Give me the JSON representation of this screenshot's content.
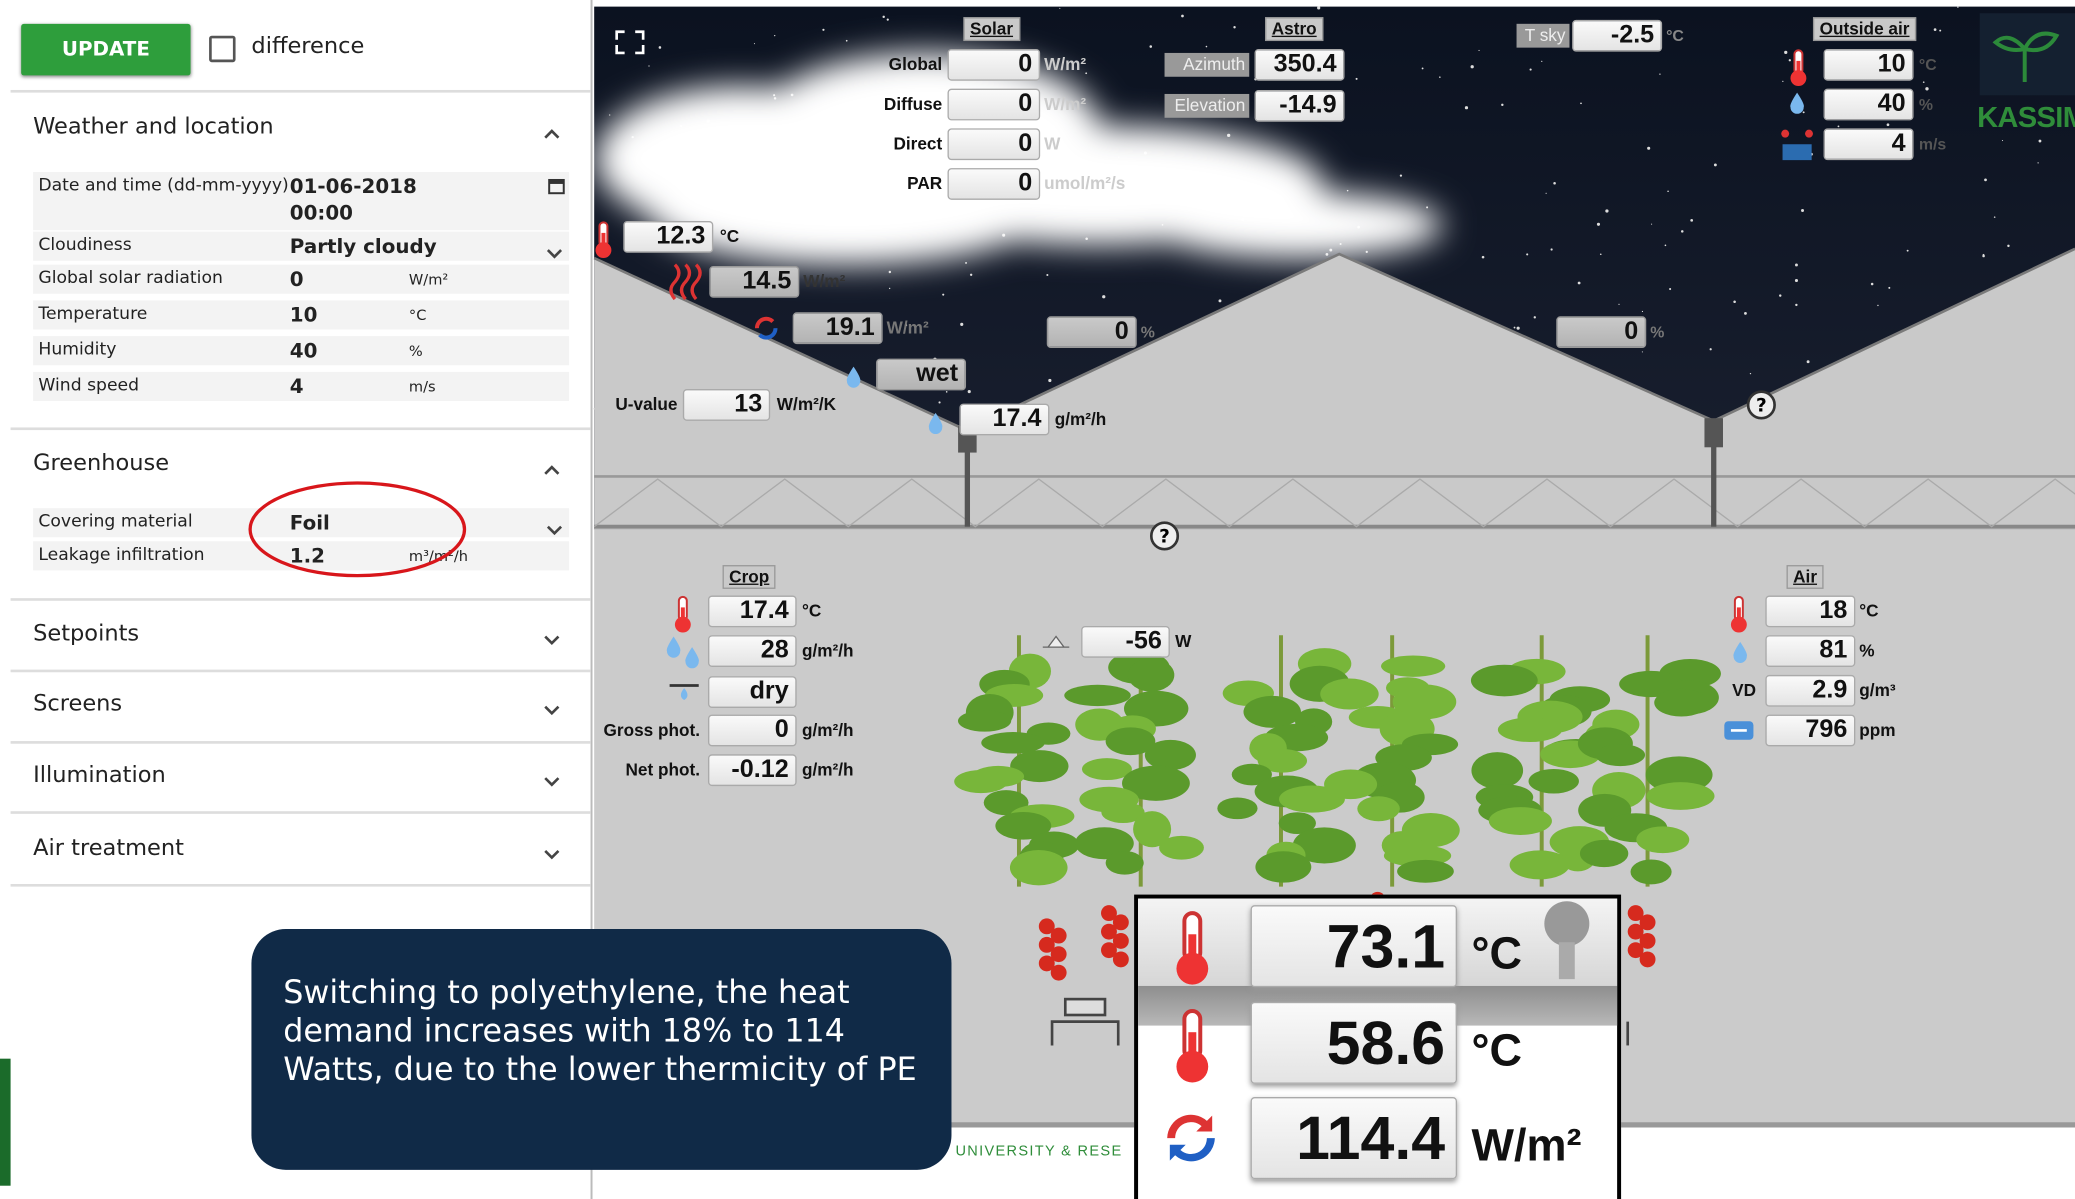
{
  "sidebar": {
    "update_button": "UPDATE",
    "difference_label": "difference",
    "sections": [
      {
        "title": "Weather and location",
        "fields": [
          {
            "label": "Date and time (dd-mm-yyyy)",
            "value": "01-06-2018",
            "time": "00:00"
          },
          {
            "label": "Cloudiness",
            "value": "Partly cloudy"
          },
          {
            "label": "Global solar radiation",
            "value": 0,
            "unit": "W/m²"
          },
          {
            "label": "Temperature",
            "value": 10,
            "unit": "°C"
          },
          {
            "label": "Humidity",
            "value": 40,
            "unit": "%"
          },
          {
            "label": "Wind speed",
            "value": 4,
            "unit": "m/s"
          }
        ]
      },
      {
        "title": "Greenhouse",
        "fields": [
          {
            "label": "Covering material",
            "value": "Foil"
          },
          {
            "label": "Leakage infiltration",
            "value": 1.2,
            "unit": "m³/m²/h"
          }
        ]
      },
      {
        "title": "Setpoints"
      },
      {
        "title": "Screens"
      },
      {
        "title": "Illumination"
      },
      {
        "title": "Air treatment"
      }
    ]
  },
  "scene": {
    "solar": {
      "title": "Solar",
      "rows": [
        {
          "label": "Global",
          "value": 0,
          "unit": "W/m²"
        },
        {
          "label": "Diffuse",
          "value": 0,
          "unit": "W/m²"
        },
        {
          "label": "Direct",
          "value": 0,
          "unit": "W"
        },
        {
          "label": "PAR",
          "value": 0,
          "unit": "umol/m²/s"
        }
      ]
    },
    "astro": {
      "title": "Astro",
      "rows": [
        {
          "label": "Azimuth",
          "value": 350.4
        },
        {
          "label": "Elevation",
          "value": -14.9
        }
      ]
    },
    "sky": {
      "label": "T sky",
      "value": -2.5,
      "unit": "°C"
    },
    "outside_air": {
      "title": "Outside air",
      "rows": [
        {
          "value": 10,
          "unit": "°C"
        },
        {
          "value": 40,
          "unit": "%"
        },
        {
          "value": 4,
          "unit": "m/s"
        }
      ]
    },
    "logo": "KASSIM",
    "roof": {
      "temperature": {
        "value": 12.3,
        "unit": "°C"
      },
      "radiation": {
        "value": 14.5,
        "unit": "W/m²"
      },
      "heat_flux": {
        "value": 19.1,
        "unit": "W/m²"
      },
      "condensation": "wet",
      "u_value": {
        "label": "U-value",
        "value": 13,
        "unit": "W/m²/K"
      },
      "condensation_rate": {
        "value": 17.4,
        "unit": "g/m²/h"
      },
      "vent_left": {
        "value": 0,
        "unit": "%"
      },
      "vent_right": {
        "value": 0,
        "unit": "%"
      }
    },
    "crop": {
      "title": "Crop",
      "temperature": {
        "value": 17.4,
        "unit": "°C"
      },
      "transpiration": {
        "value": 28,
        "unit": "g/m²/h"
      },
      "wetness": "dry",
      "gross_phot": {
        "label": "Gross phot.",
        "value": 0,
        "unit": "g/m²/h"
      },
      "net_phot": {
        "label": "Net phot.",
        "value": -0.12,
        "unit": "g/m²/h"
      }
    },
    "heating": {
      "value": -56,
      "unit": "W"
    },
    "air": {
      "title": "Air",
      "temperature": {
        "value": 18,
        "unit": "°C"
      },
      "humidity": {
        "value": 81,
        "unit": "%"
      },
      "vd": {
        "label": "VD",
        "value": 2.9,
        "unit": "g/m³"
      },
      "co2": {
        "value": 796,
        "unit": "ppm"
      }
    },
    "zoom": {
      "rows": [
        {
          "value": 73.1,
          "unit": "°C"
        },
        {
          "value": 58.6,
          "unit": "°C"
        },
        {
          "value": 114.4,
          "unit": "W/m²"
        }
      ]
    },
    "footer_text": "UNIVERSITY & RESE"
  },
  "callout": "Switching to polyethylene, the heat demand increases with 18% to 114 Watts, due to the lower thermicity of PE"
}
